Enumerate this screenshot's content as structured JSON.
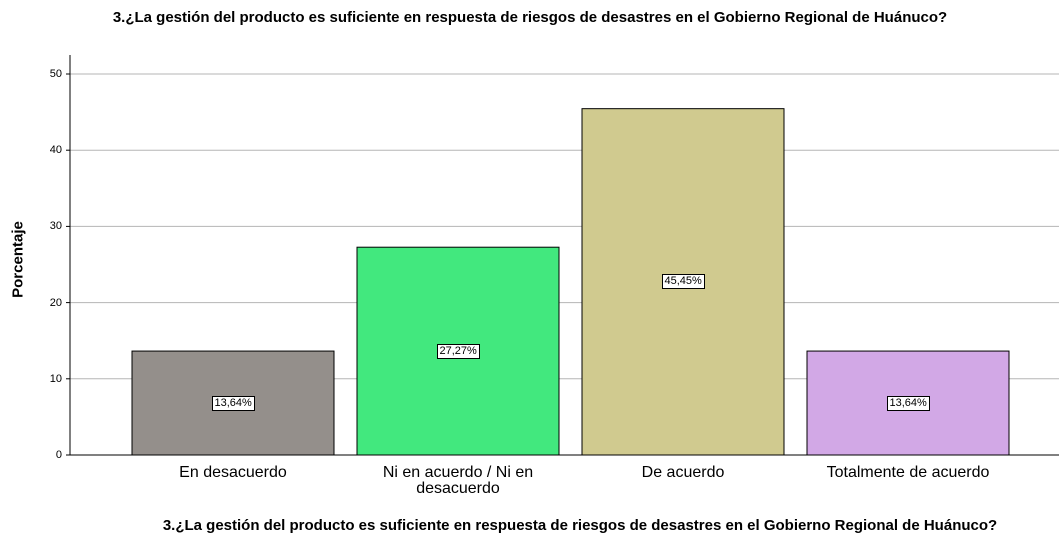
{
  "chart_data": {
    "type": "bar",
    "title": "3.¿La gestión del producto es suficiente en respuesta de riesgos de desastres en el Gobierno Regional de Huánuco?",
    "xlabel": "3.¿La gestión del producto es suficiente en respuesta de riesgos de desastres en el Gobierno Regional de Huánuco?",
    "ylabel": "Porcentaje",
    "categories": [
      "En desacuerdo",
      "Ni en acuerdo / Ni en desacuerdo",
      "De acuerdo",
      "Totalmente de acuerdo"
    ],
    "values": [
      13.64,
      27.27,
      45.45,
      13.64
    ],
    "value_labels": [
      "13,64%",
      "27,27%",
      "45,45%",
      "13,64%"
    ],
    "colors": [
      "#948f8b",
      "#42e87e",
      "#d0ca8f",
      "#d2a8e6"
    ],
    "ylim": [
      0,
      50
    ],
    "yticks": [
      0,
      10,
      20,
      30,
      40,
      50
    ],
    "grid": true
  }
}
